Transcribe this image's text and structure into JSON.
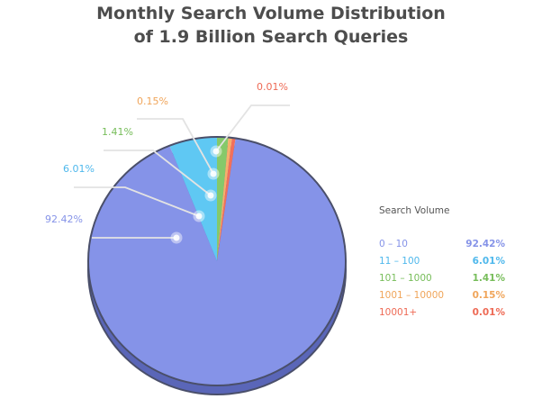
{
  "title_line1": "Monthly Search Volume Distribution",
  "title_line2": "of 1.9 Billion Search Queries",
  "legend_title": "Search Volume",
  "chart_data": {
    "type": "pie",
    "title": "Monthly Search Volume Distribution of 1.9 Billion Search Queries",
    "legend_title": "Search Volume",
    "legend_position": "right",
    "slices": [
      {
        "label": "0 – 10",
        "value": 92.42,
        "display": "92.42%",
        "color": "#8593e8",
        "shadow": "#6372c9",
        "text_color": "#8593e8"
      },
      {
        "label": "11 – 100",
        "value": 6.01,
        "display": "6.01%",
        "color": "#5fc8f3",
        "shadow": "#45a9d6",
        "text_color": "#4fb8ec"
      },
      {
        "label": "101 – 1000",
        "value": 1.41,
        "display": "1.41%",
        "color": "#85c96a",
        "shadow": "#69ab52",
        "text_color": "#77bd5a"
      },
      {
        "label": "1001 – 10000",
        "value": 0.15,
        "display": "0.15%",
        "color": "#f5b06b",
        "shadow": "#d99350",
        "text_color": "#f0a55a"
      },
      {
        "label": "10001+",
        "value": 0.01,
        "display": "0.01%",
        "color": "#f2705a",
        "shadow": "#d55842",
        "text_color": "#ee6a55"
      }
    ]
  }
}
